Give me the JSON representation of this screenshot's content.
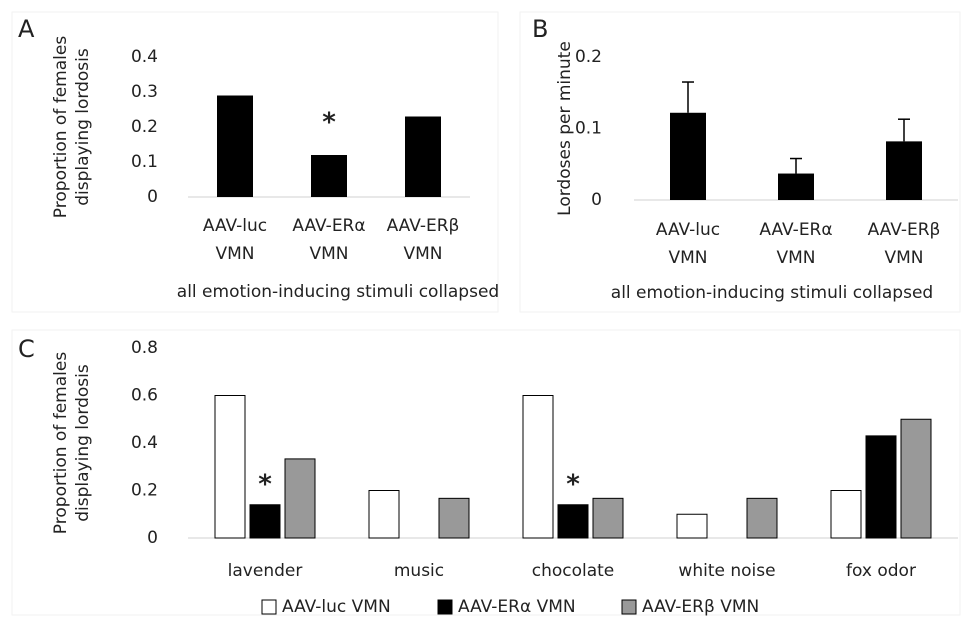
{
  "chart_data": [
    {
      "type": "bar",
      "panel": "A",
      "ylabel": [
        "Proportion of females",
        "displaying lordosis"
      ],
      "xlabel": "all emotion-inducing stimuli collapsed",
      "categories": [
        [
          "AAV-luc",
          "VMN"
        ],
        [
          "AAV-ERα",
          "VMN"
        ],
        [
          "AAV-ERβ",
          "VMN"
        ]
      ],
      "values": [
        0.29,
        0.12,
        0.23
      ],
      "color": "#000000",
      "ylim": [
        0,
        0.4
      ],
      "yticks": [
        0,
        0.1,
        0.2,
        0.3,
        0.4
      ],
      "annotations": [
        {
          "text": "*",
          "category": 1
        }
      ]
    },
    {
      "type": "bar",
      "panel": "B",
      "ylabel": [
        "Lordoses per minute"
      ],
      "xlabel": "all emotion-inducing stimuli collapsed",
      "categories": [
        [
          "AAV-luc",
          "VMN"
        ],
        [
          "AAV-ERα",
          "VMN"
        ],
        [
          "AAV-ERβ",
          "VMN"
        ]
      ],
      "values": [
        0.122,
        0.037,
        0.082
      ],
      "errors": [
        0.043,
        0.021,
        0.031
      ],
      "color": "#000000",
      "ylim": [
        0,
        0.2
      ],
      "yticks": [
        0,
        0.1,
        0.2
      ]
    },
    {
      "type": "grouped_bar",
      "panel": "C",
      "ylabel": [
        "Proportion of females",
        "displaying lordosis"
      ],
      "categories": [
        "lavender",
        "music",
        "chocolate",
        "white noise",
        "fox odor"
      ],
      "series": [
        {
          "name": "AAV-luc VMN",
          "color": "#ffffff",
          "values": [
            0.6,
            0.2,
            0.6,
            0.1,
            0.2
          ]
        },
        {
          "name": "AAV-ERα VMN",
          "color": "#000000",
          "values": [
            0.14,
            0,
            0.14,
            0,
            0.43
          ]
        },
        {
          "name": "AAV-ERβ VMN",
          "color": "#999999",
          "values": [
            0.333,
            0.167,
            0.167,
            0.167,
            0.5
          ]
        }
      ],
      "ylim": [
        0,
        0.8
      ],
      "yticks": [
        0,
        0.2,
        0.4,
        0.6,
        0.8
      ],
      "legend": "bottom",
      "annotations": [
        {
          "text": "*",
          "category": 0,
          "series": 1
        },
        {
          "text": "*",
          "category": 2,
          "series": 1
        }
      ]
    }
  ]
}
